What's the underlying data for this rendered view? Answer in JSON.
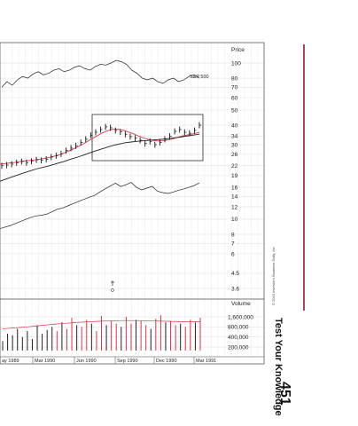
{
  "page": {
    "running_head": "Test Your Knowledge",
    "page_number": "451",
    "copyright": "© 2010 Investor's Business Daily, Inc.",
    "accent_color": "#b8405a"
  },
  "chart_data": {
    "type": "line",
    "price_axis": {
      "label": "Price",
      "scale": "log",
      "ticks": [
        100,
        80,
        70,
        60,
        50,
        40,
        34,
        30,
        26,
        22,
        19,
        16,
        14,
        12,
        10,
        8,
        7,
        6,
        4.5,
        3.6
      ],
      "tick_labels": [
        "100",
        "80",
        "70",
        "60",
        "50",
        "40",
        "34",
        "30",
        "26",
        "22",
        "19",
        "16",
        "14",
        "12",
        "10",
        "8",
        "7",
        "6",
        "4.5",
        "3.6"
      ]
    },
    "volume_axis": {
      "label": "Volume",
      "ticks": [
        1600000,
        800000,
        400000,
        200000
      ],
      "tick_labels": [
        "1,600,000",
        "800,000",
        "400,000",
        "200,000"
      ]
    },
    "x_axis": {
      "labels": [
        "ay 1989",
        "Mar 1990",
        "Jun 1990",
        "Sep 1990",
        "Dec 1990",
        "Mar 1991"
      ]
    },
    "series": [
      {
        "name": "S&P 500",
        "color": "#222222",
        "values": [
          70,
          76,
          72,
          78,
          82,
          80,
          85,
          88,
          84,
          86,
          90,
          92,
          88,
          90,
          94,
          96,
          92,
          90,
          95,
          98,
          97,
          100,
          104,
          102,
          98,
          90,
          86,
          80,
          78,
          80,
          76,
          74,
          78,
          80,
          76,
          78,
          82,
          84,
          80
        ]
      },
      {
        "name": "relative_strength",
        "color": "#222222",
        "values": [
          8.7,
          8.9,
          9.1,
          9.4,
          9.7,
          10.0,
          10.3,
          10.5,
          10.6,
          10.8,
          11.2,
          11.6,
          11.8,
          12.2,
          12.6,
          13.0,
          13.4,
          13.8,
          14.2,
          14.9,
          15.6,
          16.3,
          17.0,
          16.2,
          16.6,
          17.2,
          16.0,
          15.4,
          15.8,
          16.2,
          15.1,
          14.8,
          14.6,
          14.9,
          15.3,
          15.6,
          16.0,
          16.4,
          17.1
        ]
      },
      {
        "name": "price",
        "color": "#222222",
        "values": [
          22.0,
          22.2,
          22.5,
          23.0,
          23.4,
          23.0,
          23.5,
          24.0,
          23.8,
          24.2,
          25.0,
          25.5,
          26.2,
          27.5,
          28.5,
          29.5,
          31.0,
          32.5,
          34.5,
          36.0,
          37.5,
          39.0,
          38.5,
          37.0,
          36.2,
          35.0,
          33.8,
          33.0,
          32.0,
          30.5,
          31.5,
          30.0,
          31.0,
          32.5,
          34.0,
          36.5,
          37.5,
          36.0,
          35.5,
          37.0,
          40.0
        ]
      },
      {
        "name": "moving_average_short",
        "color": "#d9364c",
        "values": [
          22.5,
          22.7,
          22.9,
          23.1,
          23.4,
          23.6,
          23.8,
          24.0,
          24.3,
          24.6,
          25.0,
          25.5,
          26.1,
          26.9,
          27.8,
          28.8,
          30.0,
          31.3,
          32.7,
          34.2,
          35.6,
          36.8,
          37.6,
          37.7,
          37.2,
          36.3,
          35.3,
          34.2,
          33.2,
          32.4,
          31.9,
          31.7,
          31.8,
          32.2,
          32.8,
          33.6,
          34.3,
          34.8,
          35.3,
          36.0
        ]
      },
      {
        "name": "moving_average_long",
        "color": "#222222",
        "values": [
          17.5,
          18.0,
          18.5,
          19.0,
          19.5,
          20.0,
          20.5,
          21.0,
          21.4,
          21.8,
          22.3,
          22.8,
          23.3,
          23.9,
          24.5,
          25.1,
          25.8,
          26.5,
          27.2,
          27.9,
          28.6,
          29.3,
          29.9,
          30.4,
          30.9,
          31.2,
          31.5,
          31.7,
          31.9,
          32.1,
          32.3,
          32.5,
          32.8,
          33.1,
          33.4,
          33.8,
          34.2,
          34.6,
          35.0
        ]
      }
    ],
    "volume": [
      300000,
      500000,
      450000,
      700000,
      400000,
      600000,
      350000,
      900000,
      500000,
      650000,
      800000,
      600000,
      1100000,
      700000,
      1500000,
      900000,
      800000,
      1300000,
      1000000,
      600000,
      1700000,
      900000,
      1200000,
      1000000,
      800000,
      1600000,
      1000000,
      1300000,
      1200000,
      900000,
      700000,
      1400000,
      1800000,
      1100000,
      1200000,
      900000,
      1000000,
      800000,
      1300000,
      1100000,
      1500000
    ],
    "volume_avg": [
      700000,
      720000,
      740000,
      760000,
      780000,
      800000,
      830000,
      860000,
      890000,
      920000,
      950000,
      980000,
      1000000,
      1030000,
      1060000,
      1090000,
      1110000,
      1130000,
      1150000,
      1170000,
      1190000,
      1210000,
      1220000,
      1230000,
      1240000,
      1240000,
      1240000,
      1240000,
      1230000,
      1220000,
      1210000,
      1200000,
      1190000,
      1180000,
      1170000,
      1160000,
      1150000,
      1150000,
      1150000,
      1150000,
      1150000
    ],
    "grid": true
  }
}
